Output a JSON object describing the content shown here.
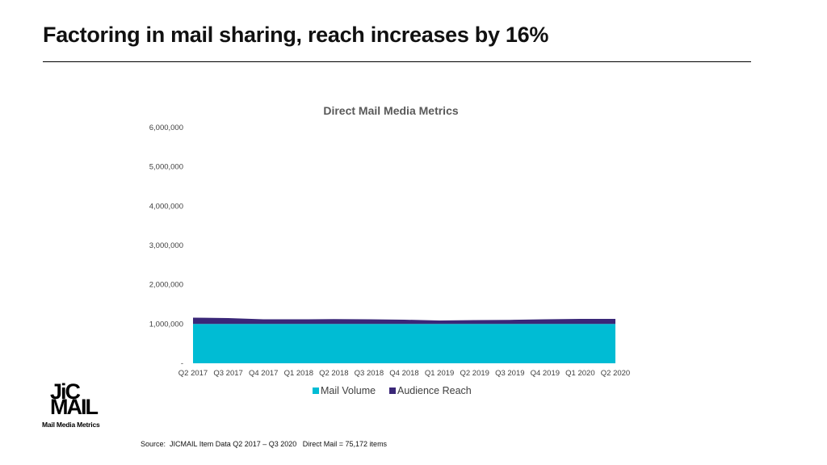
{
  "slide": {
    "title": "Factoring in mail sharing, reach increases by 16%",
    "source": "Source:  JICMAIL Item Data Q2 2017 – Q3 2020   Direct Mail = 75,172 items"
  },
  "logo": {
    "line1": "JiC",
    "line2": "MAIL",
    "tagline": "Mail Media Metrics"
  },
  "colors": {
    "mail_volume": "#00BCD4",
    "audience_reach": "#3A2778"
  },
  "chart_data": {
    "type": "area",
    "stacked": true,
    "title": "Direct Mail Media Metrics",
    "xlabel": "",
    "ylabel": "",
    "ylim": [
      0,
      6000000
    ],
    "y_ticks": [
      0,
      1000000,
      2000000,
      3000000,
      4000000,
      5000000,
      6000000
    ],
    "y_tick_labels": [
      "-",
      "1,000,000",
      "2,000,000",
      "3,000,000",
      "4,000,000",
      "5,000,000",
      "6,000,000"
    ],
    "grid": false,
    "legend": "bottom",
    "categories": [
      "Q2 2017",
      "Q3 2017",
      "Q4 2017",
      "Q1 2018",
      "Q2 2018",
      "Q3 2018",
      "Q4 2018",
      "Q1 2019",
      "Q2 2019",
      "Q3 2019",
      "Q4 2019",
      "Q1 2020",
      "Q2 2020"
    ],
    "series": [
      {
        "name": "Mail Volume",
        "values": [
          1000000,
          1000000,
          1000000,
          1000000,
          1000000,
          1000000,
          1000000,
          1000000,
          1000000,
          1000000,
          1000000,
          1000000,
          1000000
        ]
      },
      {
        "name": "Audience Reach",
        "values": [
          160000,
          150000,
          120000,
          120000,
          125000,
          120000,
          110000,
          90000,
          100000,
          105000,
          120000,
          130000,
          130000
        ]
      }
    ]
  }
}
